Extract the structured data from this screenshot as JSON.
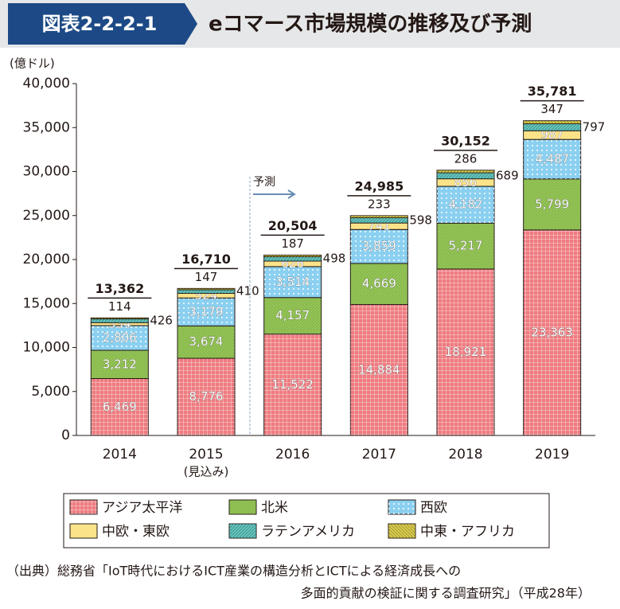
{
  "header": {
    "badge": "図表2-2-2-1",
    "title": "eコマース市場規模の推移及び予測"
  },
  "chart_data": {
    "type": "stacked_bar",
    "y_label": "(億ドル)",
    "annotation": "予測",
    "categories": [
      "2014",
      "2015",
      "2016",
      "2017",
      "2018",
      "2019"
    ],
    "category_sublabels": [
      null,
      "(見込み)",
      null,
      null,
      null,
      null
    ],
    "ylim": [
      0,
      40000
    ],
    "yticks": [
      0,
      {
        "value": 5000,
        "label": "5,000"
      },
      {
        "value": 10000,
        "label": "10,000"
      },
      {
        "value": 15000,
        "label": "15,000"
      },
      {
        "value": 20000,
        "label": "20,000"
      },
      {
        "value": 25000,
        "label": "25,000"
      },
      {
        "value": 30000,
        "label": "30,000"
      },
      {
        "value": 35000,
        "label": "35,000"
      },
      {
        "value": 40000,
        "label": "40,000"
      }
    ],
    "series": [
      {
        "name": "アジア太平洋",
        "color": "#ee7b80",
        "values": [
          6469,
          8776,
          11522,
          14884,
          18921,
          23363
        ],
        "value_labels": [
          "6,469",
          "8,776",
          "11,522",
          "14,884",
          "18,921",
          "23,363"
        ]
      },
      {
        "name": "北米",
        "color": "#94c356",
        "values": [
          3212,
          3674,
          4157,
          4669,
          5217,
          5799
        ],
        "value_labels": [
          "3,212",
          "3,674",
          "4,157",
          "4,669",
          "5,217",
          "5,799"
        ]
      },
      {
        "name": "西欧",
        "color": "#8bd0f0",
        "values": [
          2806,
          3179,
          3514,
          3859,
          4182,
          4487
        ],
        "value_labels": [
          "2,806",
          "3,179",
          "3,514",
          "3,859",
          "4,182",
          "4,487"
        ]
      },
      {
        "name": "中欧・東欧",
        "color": "#fbe38a",
        "values": [
          334,
          524,
          626,
          741,
          856,
          987
        ]
      },
      {
        "name": "ラテンアメリカ",
        "color": "#6cc3bd",
        "values": [
          426,
          410,
          498,
          598,
          689,
          797
        ]
      },
      {
        "name": "中東・アフリカ",
        "color": "#d9cc55",
        "values": [
          114,
          147,
          187,
          233,
          286,
          347
        ]
      }
    ],
    "totals": [
      13362,
      16710,
      20504,
      24985,
      30152,
      35781
    ],
    "total_labels": [
      "13,362",
      "16,710",
      "20,504",
      "24,985",
      "30,152",
      "35,781"
    ]
  },
  "source": [
    "（出典）総務省「IoT時代におけるICT産業の構造分析とICTによる経済成長への",
    "多面的貢献の検証に関する調査研究」（平成28年）"
  ]
}
